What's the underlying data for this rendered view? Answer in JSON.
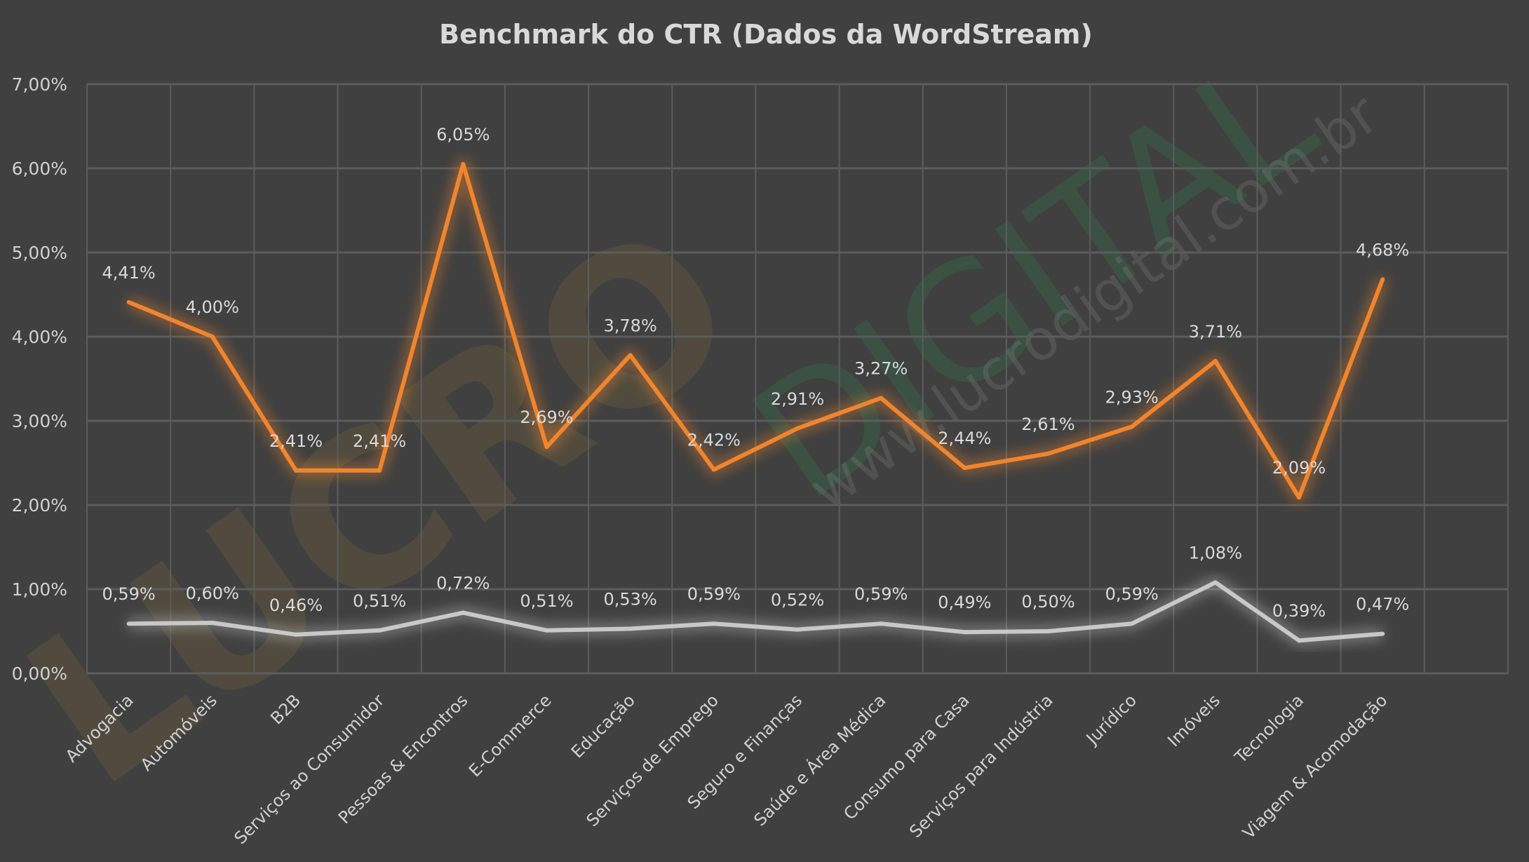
{
  "chart_data": {
    "type": "line",
    "title": "Benchmark do CTR (Dados da WordStream)",
    "xlabel": "",
    "ylabel": "",
    "ylim": [
      0,
      7
    ],
    "yticks": [
      "0,00%",
      "1,00%",
      "2,00%",
      "3,00%",
      "4,00%",
      "5,00%",
      "6,00%",
      "7,00%"
    ],
    "grid": true,
    "legend": "none",
    "categories": [
      "Advogacia",
      "Automóveis",
      "B2B",
      "Serviços ao Consumidor",
      "Pessoas & Encontros",
      "E-Commerce",
      "Educação",
      "Serviços de Emprego",
      "Seguro e Finanças",
      "Saúde e Área Médica",
      "Consumo para Casa",
      "Serviços para Indústria",
      "Jurídico",
      "Imóveis",
      "Tecnologia",
      "Viagem & Acomodação"
    ],
    "series": [
      {
        "color": "#f0852d",
        "values": [
          4.41,
          4.0,
          2.41,
          2.41,
          6.05,
          2.69,
          3.78,
          2.42,
          2.91,
          3.27,
          2.44,
          2.61,
          2.93,
          3.71,
          2.09,
          4.68
        ],
        "labels": [
          "4,41%",
          "4,00%",
          "2,41%",
          "2,41%",
          "6,05%",
          "2,69%",
          "3,78%",
          "2,42%",
          "2,91%",
          "3,27%",
          "2,44%",
          "2,61%",
          "2,93%",
          "3,71%",
          "2,09%",
          "4,68%"
        ]
      },
      {
        "color": "#c8c8c8",
        "values": [
          0.59,
          0.6,
          0.46,
          0.51,
          0.72,
          0.51,
          0.53,
          0.59,
          0.52,
          0.59,
          0.49,
          0.5,
          0.59,
          1.08,
          0.39,
          0.47
        ],
        "labels": [
          "0,59%",
          "0,60%",
          "0,46%",
          "0,51%",
          "0,72%",
          "0,51%",
          "0,53%",
          "0,59%",
          "0,52%",
          "0,59%",
          "0,49%",
          "0,50%",
          "0,59%",
          "1,08%",
          "0,39%",
          "0,47%"
        ]
      }
    ]
  },
  "watermark": {
    "brand": "LUCRO",
    "brand2": "DIGITAL",
    "url": "www.lucrodigital.com.br"
  },
  "colors": {
    "background": "#404040",
    "grid": "#5c5c5c",
    "text": "#d9d9d9"
  }
}
